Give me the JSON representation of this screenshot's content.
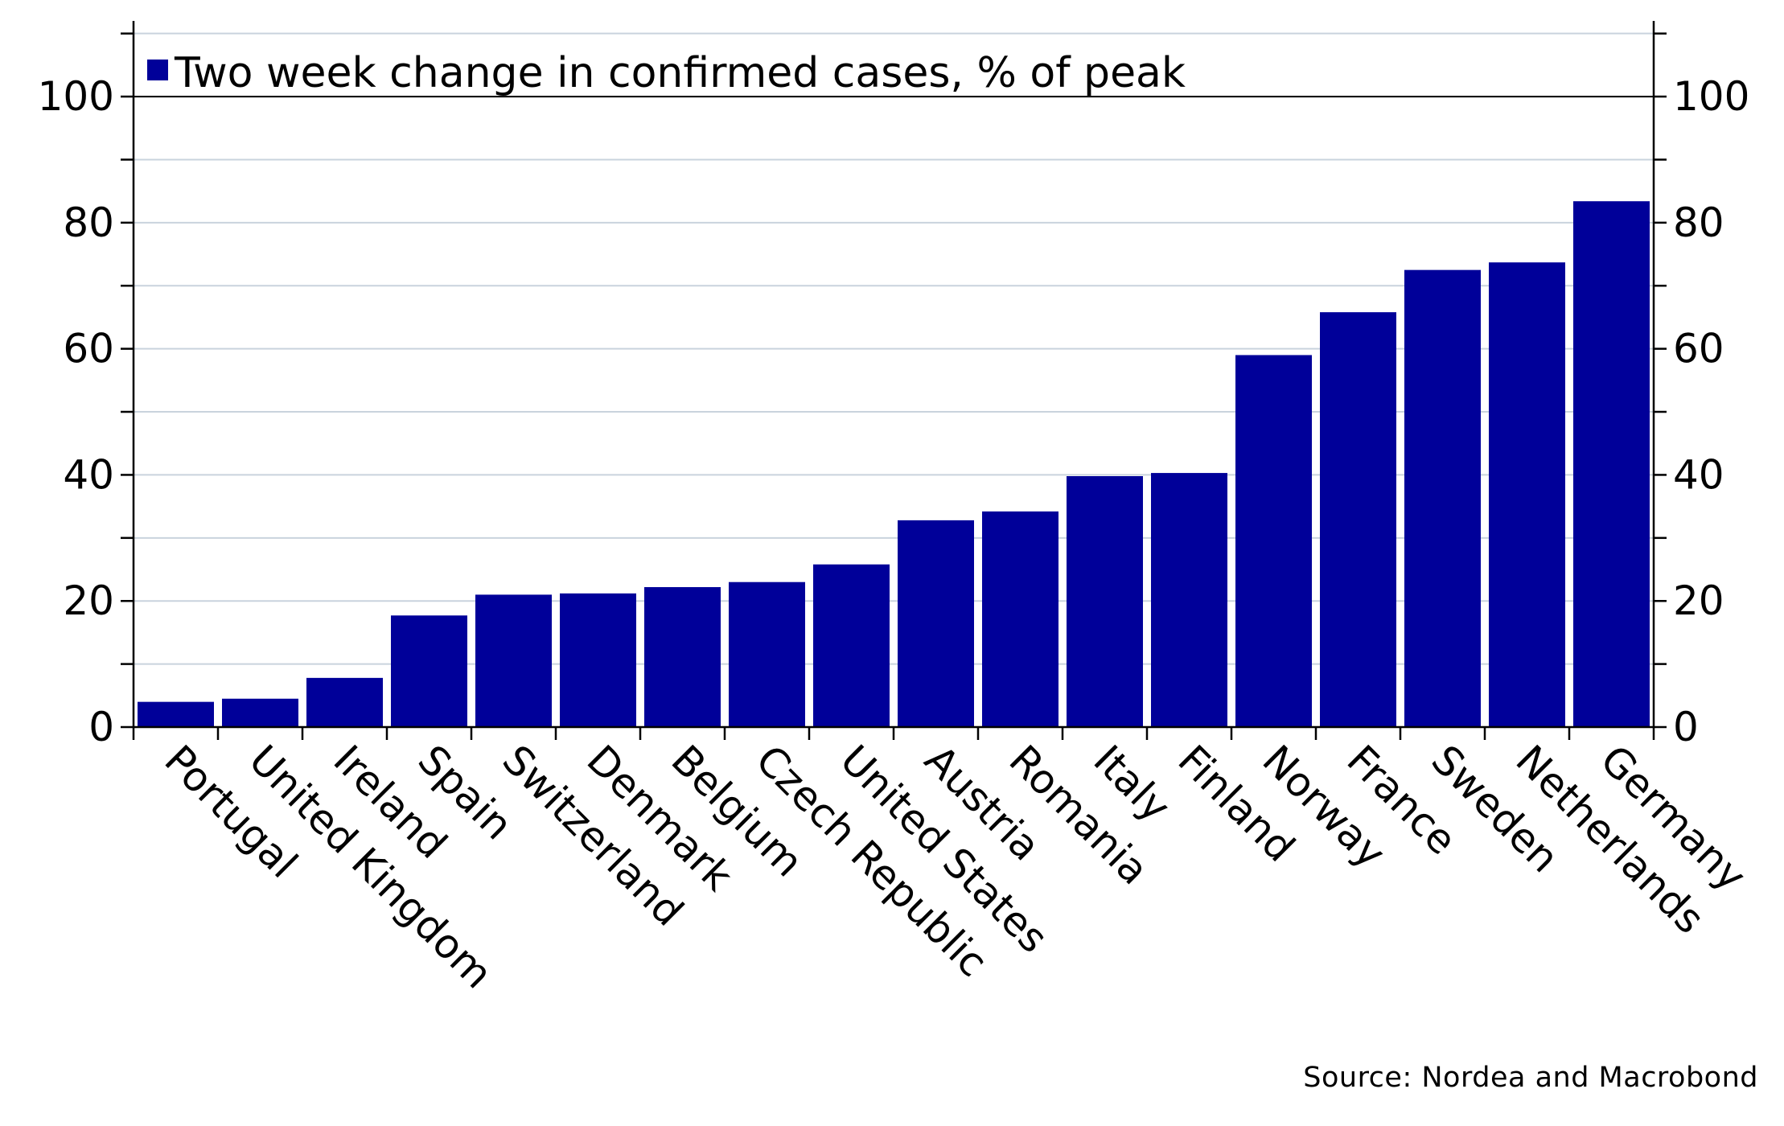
{
  "chart_data": {
    "type": "bar",
    "categories": [
      "Portugal",
      "United Kingdom",
      "Ireland",
      "Spain",
      "Switzerland",
      "Denmark",
      "Belgium",
      "Czech Republic",
      "United States",
      "Austria",
      "Romania",
      "Italy",
      "Finland",
      "Norway",
      "France",
      "Sweden",
      "Netherlands",
      "Germany"
    ],
    "series": [
      {
        "name": "Two week change in confirmed cases, % of peak",
        "values": [
          4,
          4.5,
          7.8,
          17.7,
          21,
          21.2,
          22.2,
          23,
          25.8,
          32.8,
          34.2,
          39.8,
          40.3,
          59,
          65.8,
          72.5,
          73.7,
          83.4
        ],
        "color": "#000099"
      }
    ],
    "ylim": [
      0,
      112
    ],
    "yticks": [
      0,
      20,
      40,
      60,
      80,
      100
    ],
    "yticks_minor": [
      10,
      30,
      50,
      70,
      90,
      110
    ],
    "ytick_labels": [
      "0",
      "20",
      "40",
      "60",
      "80",
      "100"
    ],
    "secondary_y_axis": true,
    "grid": true,
    "legend_position": "top-left",
    "source": "Source: Nordea and Macrobond"
  }
}
